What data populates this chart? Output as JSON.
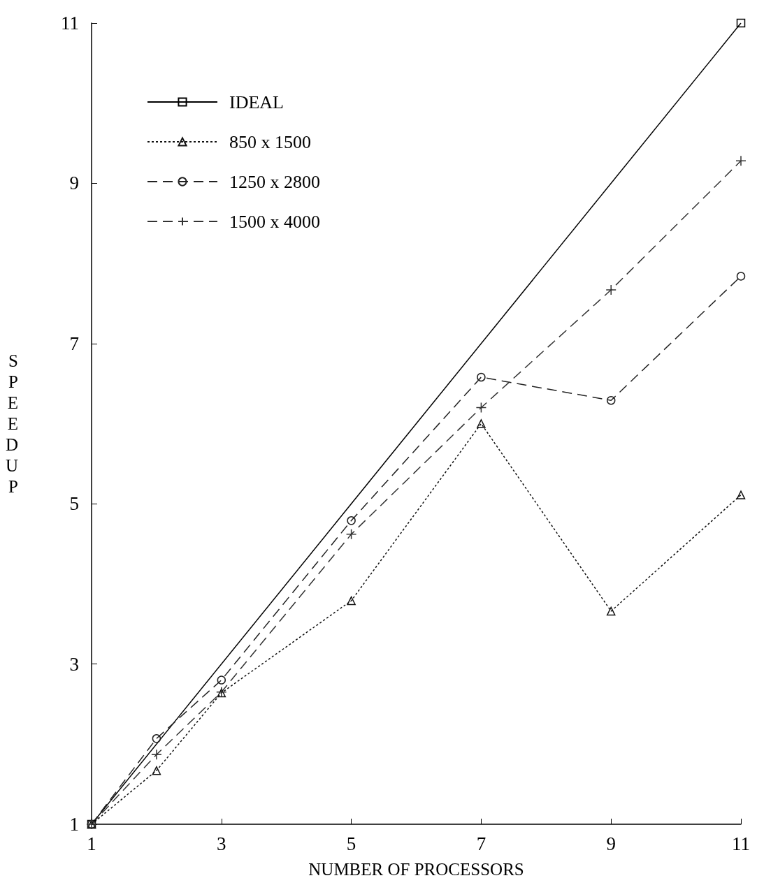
{
  "chart_data": {
    "type": "line",
    "xlabel": "NUMBER OF PROCESSORS",
    "ylabel": "SPEEDUP",
    "xlim": [
      1,
      11
    ],
    "ylim": [
      1,
      11
    ],
    "xticks": [
      1,
      3,
      5,
      7,
      9,
      11
    ],
    "yticks": [
      1,
      3,
      5,
      7,
      9,
      11
    ],
    "grid": false,
    "legend": "top left",
    "series": [
      {
        "name": "IDEAL",
        "color": "#000000",
        "x": [
          1,
          11
        ],
        "values": [
          1,
          11
        ],
        "marker": "square",
        "line_style": "solid"
      },
      {
        "name": "850 x 1500",
        "color": "#111111",
        "x": [
          1,
          2,
          3,
          5,
          7,
          9,
          11
        ],
        "values": [
          1,
          1.67,
          2.64,
          3.79,
          6.0,
          3.66,
          5.11
        ],
        "marker": "triangle",
        "line_style": "dotted"
      },
      {
        "name": "1250 x 2800",
        "color": "#222222",
        "x": [
          1,
          2,
          3,
          5,
          7,
          9,
          11
        ],
        "values": [
          1,
          2.07,
          2.8,
          4.79,
          6.58,
          6.29,
          7.84
        ],
        "marker": "circle",
        "line_style": "dashed"
      },
      {
        "name": "1500 x 4000",
        "color": "#333333",
        "x": [
          1,
          2,
          3,
          5,
          7,
          9,
          11
        ],
        "values": [
          1,
          1.87,
          2.65,
          4.62,
          6.2,
          7.67,
          9.28
        ],
        "marker": "cross",
        "line_style": "dashed"
      }
    ]
  }
}
